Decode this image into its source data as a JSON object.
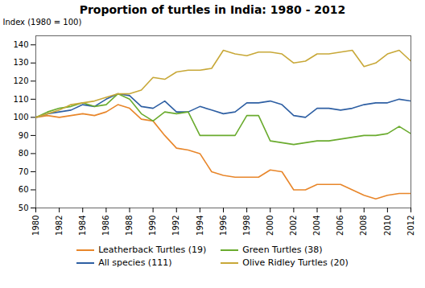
{
  "chart_data": {
    "type": "line",
    "title": "Proportion of turtles in India: 1980 - 2012",
    "ylabel": "Index (1980 = 100)",
    "x": [
      1980,
      1981,
      1982,
      1983,
      1984,
      1985,
      1986,
      1987,
      1988,
      1989,
      1990,
      1991,
      1992,
      1993,
      1994,
      1995,
      1996,
      1997,
      1998,
      1999,
      2000,
      2001,
      2002,
      2003,
      2004,
      2005,
      2006,
      2007,
      2008,
      2009,
      2010,
      2011,
      2012
    ],
    "series": [
      {
        "name": "Leatherback Turtles (19)",
        "color": "#E8862A",
        "values": [
          100,
          101,
          100,
          101,
          102,
          101,
          103,
          107,
          105,
          99,
          98,
          90,
          83,
          82,
          80,
          70,
          68,
          67,
          67,
          67,
          71,
          70,
          60,
          60,
          63,
          63,
          63,
          60,
          57,
          55,
          57,
          58,
          58
        ]
      },
      {
        "name": "All species (111)",
        "color": "#2E5FA3",
        "values": [
          100,
          102,
          103,
          104,
          107,
          106,
          110,
          113,
          112,
          106,
          105,
          109,
          103,
          103,
          106,
          104,
          102,
          103,
          108,
          108,
          109,
          107,
          101,
          100,
          105,
          105,
          104,
          105,
          107,
          108,
          108,
          110,
          109
        ]
      },
      {
        "name": "Green Turtles (38)",
        "color": "#6AAB2E",
        "values": [
          100,
          103,
          105,
          106,
          108,
          106,
          107,
          113,
          110,
          102,
          98,
          103,
          102,
          103,
          90,
          90,
          90,
          90,
          101,
          101,
          87,
          86,
          85,
          86,
          87,
          87,
          88,
          89,
          90,
          90,
          91,
          95,
          91
        ]
      },
      {
        "name": "Olive Ridley Turtles (20)",
        "color": "#C8A838",
        "values": [
          100,
          102,
          104,
          107,
          108,
          109,
          111,
          113,
          113,
          115,
          122,
          121,
          125,
          126,
          126,
          127,
          137,
          135,
          134,
          136,
          136,
          135,
          130,
          131,
          135,
          135,
          136,
          137,
          128,
          130,
          135,
          137,
          131
        ]
      }
    ],
    "xlim": [
      1980,
      2012
    ],
    "xticks": [
      1980,
      1982,
      1984,
      1986,
      1988,
      1990,
      1992,
      1994,
      1996,
      1998,
      2000,
      2002,
      2004,
      2006,
      2008,
      2010,
      2012
    ],
    "ylim": [
      50,
      145
    ],
    "yticks": [
      50,
      60,
      70,
      80,
      90,
      100,
      110,
      120,
      130,
      140
    ],
    "grid": false,
    "legend": "bottom"
  }
}
